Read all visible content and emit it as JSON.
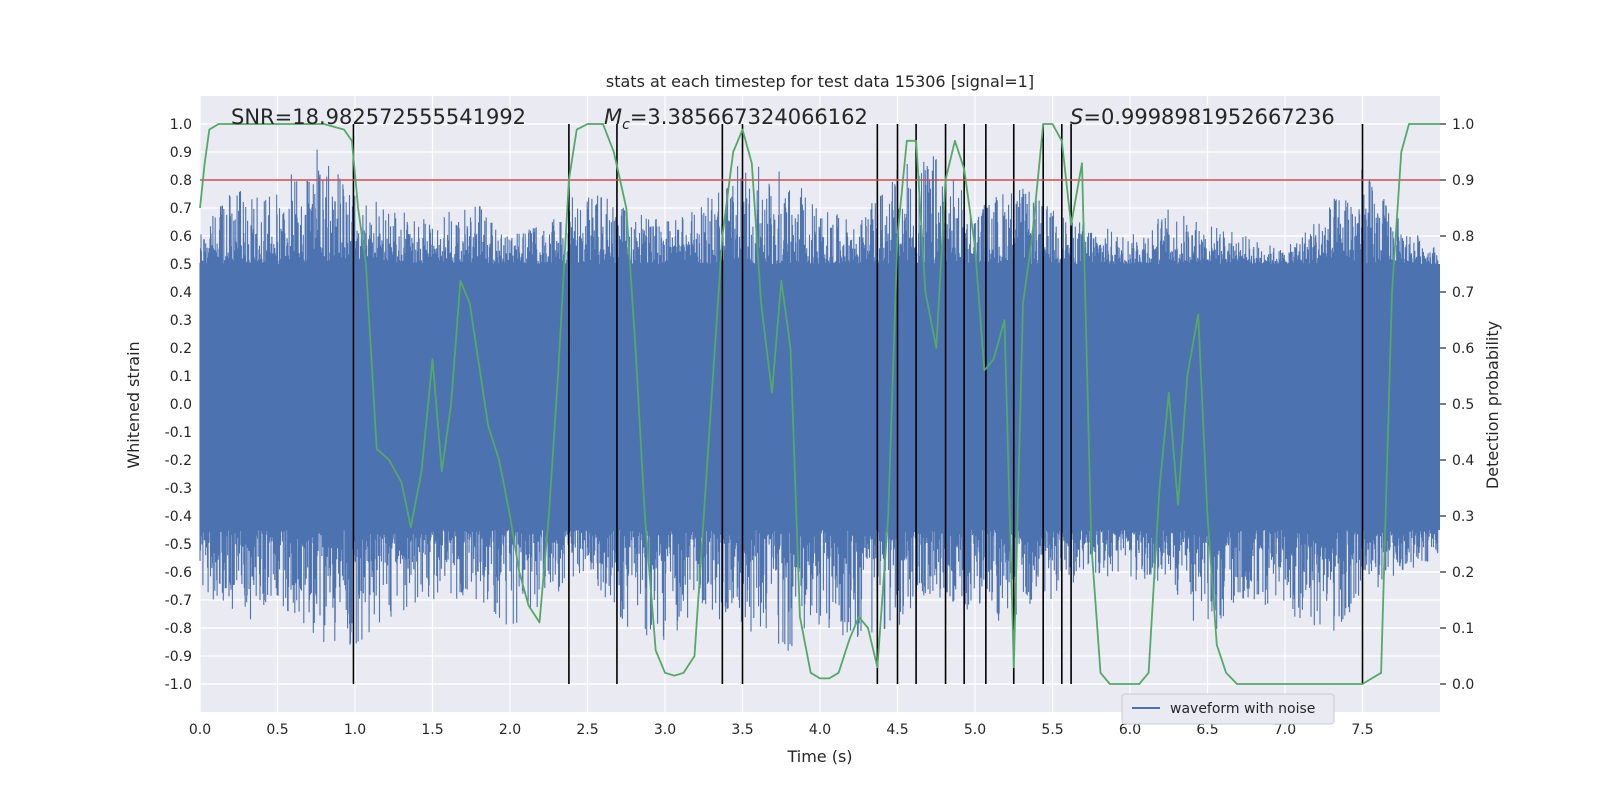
{
  "chart_data": {
    "type": "line",
    "title": "stats at each timestep for test data 15306 [signal=1]",
    "xlabel": "Time (s)",
    "ylabel": "Whitened strain",
    "y2label": "Detection probability",
    "xlim": [
      0.0,
      8.0
    ],
    "ylim": [
      -1.1,
      1.1
    ],
    "y2lim": [
      -0.05,
      1.05
    ],
    "x_ticks": [
      "0.0",
      "0.5",
      "1.0",
      "1.5",
      "2.0",
      "2.5",
      "3.0",
      "3.5",
      "4.0",
      "4.5",
      "5.0",
      "5.5",
      "6.0",
      "6.5",
      "7.0",
      "7.5"
    ],
    "y_ticks": [
      "1.0",
      "0.9",
      "0.8",
      "0.7",
      "0.6",
      "0.5",
      "0.4",
      "0.3",
      "0.2",
      "0.1",
      "0.0",
      "-0.1",
      "-0.2",
      "-0.3",
      "-0.4",
      "-0.5",
      "-0.6",
      "-0.7",
      "-0.8",
      "-0.9",
      "-1.0"
    ],
    "y2_ticks": [
      "1.0",
      "0.9",
      "0.8",
      "0.7",
      "0.6",
      "0.5",
      "0.4",
      "0.3",
      "0.2",
      "0.1",
      "0.0"
    ],
    "grid": true,
    "legend_placement": "lower-right",
    "annotations": {
      "snr_text": "SNR=18.982572555541992",
      "mc_symbol": "M",
      "mc_subscript": "c",
      "mc_value": "=3.385667324066162",
      "s_symbol": "S",
      "s_value": "=0.9998981952667236"
    },
    "threshold": {
      "value": 0.9,
      "axis": "y2",
      "color": "#c44e52"
    },
    "vertical_lines_x": [
      0.99,
      2.38,
      2.69,
      3.37,
      3.5,
      4.37,
      4.5,
      4.62,
      4.81,
      4.93,
      5.07,
      5.25,
      5.44,
      5.56,
      5.62,
      7.5
    ],
    "series": [
      {
        "name": "waveform with noise",
        "axis": "y",
        "color": "#4c72b0",
        "envelope_x": [
          0.0,
          0.25,
          0.5,
          0.75,
          1.0,
          1.25,
          1.5,
          1.75,
          2.0,
          2.25,
          2.5,
          2.75,
          3.0,
          3.25,
          3.5,
          3.75,
          4.0,
          4.25,
          4.5,
          4.75,
          5.0,
          5.25,
          5.5,
          5.75,
          6.0,
          6.25,
          6.5,
          6.75,
          7.0,
          7.25,
          7.5,
          7.75,
          8.0
        ],
        "envelope_upper": [
          0.62,
          0.8,
          0.75,
          0.95,
          0.75,
          0.7,
          0.65,
          0.75,
          0.6,
          0.65,
          0.8,
          0.7,
          0.65,
          0.72,
          0.9,
          0.85,
          0.7,
          0.65,
          0.85,
          0.9,
          0.7,
          0.8,
          0.7,
          0.65,
          0.6,
          0.7,
          0.65,
          0.6,
          0.55,
          0.7,
          0.85,
          0.65,
          0.55
        ],
        "envelope_lower": [
          -0.65,
          -0.8,
          -0.7,
          -0.85,
          -0.9,
          -0.75,
          -0.7,
          -0.7,
          -0.8,
          -0.7,
          -0.6,
          -0.8,
          -0.85,
          -0.75,
          -0.8,
          -0.9,
          -0.8,
          -0.85,
          -0.8,
          -0.7,
          -0.75,
          -0.8,
          -0.7,
          -0.6,
          -0.65,
          -0.65,
          -0.85,
          -0.7,
          -0.75,
          -0.85,
          -0.7,
          -0.6,
          -0.55
        ],
        "dense_band": [
          -0.45,
          0.5
        ]
      },
      {
        "name": "",
        "axis": "y2",
        "color": "#55a868",
        "x": [
          0.0,
          0.03,
          0.06,
          0.12,
          0.3,
          0.6,
          0.8,
          0.93,
          0.98,
          1.02,
          1.07,
          1.14,
          1.22,
          1.3,
          1.36,
          1.43,
          1.5,
          1.56,
          1.62,
          1.68,
          1.74,
          1.8,
          1.86,
          1.93,
          2.0,
          2.06,
          2.12,
          2.19,
          2.25,
          2.31,
          2.38,
          2.43,
          2.5,
          2.6,
          2.67,
          2.75,
          2.81,
          2.87,
          2.94,
          3.0,
          3.06,
          3.12,
          3.19,
          3.25,
          3.31,
          3.37,
          3.44,
          3.5,
          3.56,
          3.62,
          3.69,
          3.75,
          3.81,
          3.87,
          3.94,
          4.0,
          4.06,
          4.12,
          4.19,
          4.25,
          4.31,
          4.37,
          4.44,
          4.5,
          4.56,
          4.62,
          4.68,
          4.75,
          4.81,
          4.87,
          4.93,
          5.0,
          5.06,
          5.12,
          5.19,
          5.25,
          5.31,
          5.37,
          5.44,
          5.5,
          5.56,
          5.62,
          5.69,
          5.75,
          5.81,
          5.87,
          5.94,
          6.0,
          6.06,
          6.12,
          6.19,
          6.25,
          6.31,
          6.37,
          6.44,
          6.5,
          6.56,
          6.62,
          6.69,
          6.75,
          6.81,
          6.87,
          6.94,
          7.0,
          7.5,
          7.56,
          7.62,
          7.69,
          7.75,
          7.8,
          8.0
        ],
        "y": [
          0.85,
          0.93,
          0.99,
          1.0,
          1.0,
          1.0,
          1.0,
          0.99,
          0.97,
          0.85,
          0.75,
          0.42,
          0.4,
          0.36,
          0.28,
          0.38,
          0.58,
          0.38,
          0.5,
          0.72,
          0.68,
          0.57,
          0.46,
          0.4,
          0.3,
          0.2,
          0.14,
          0.11,
          0.3,
          0.55,
          0.9,
          0.99,
          1.0,
          1.0,
          0.95,
          0.85,
          0.6,
          0.3,
          0.06,
          0.02,
          0.015,
          0.02,
          0.05,
          0.3,
          0.55,
          0.8,
          0.95,
          0.99,
          0.93,
          0.68,
          0.52,
          0.72,
          0.6,
          0.12,
          0.02,
          0.01,
          0.01,
          0.02,
          0.08,
          0.12,
          0.1,
          0.03,
          0.3,
          0.8,
          0.97,
          0.97,
          0.7,
          0.6,
          0.9,
          0.97,
          0.92,
          0.78,
          0.56,
          0.58,
          0.65,
          0.03,
          0.68,
          0.8,
          1.0,
          1.0,
          0.97,
          0.82,
          0.93,
          0.25,
          0.02,
          0.0,
          0.0,
          0.0,
          0.0,
          0.02,
          0.35,
          0.52,
          0.32,
          0.55,
          0.66,
          0.3,
          0.07,
          0.02,
          0.0,
          0.0,
          0.0,
          0.0,
          0.0,
          0.0,
          0.0,
          0.01,
          0.02,
          0.7,
          0.95,
          1.0,
          1.0
        ]
      }
    ]
  }
}
